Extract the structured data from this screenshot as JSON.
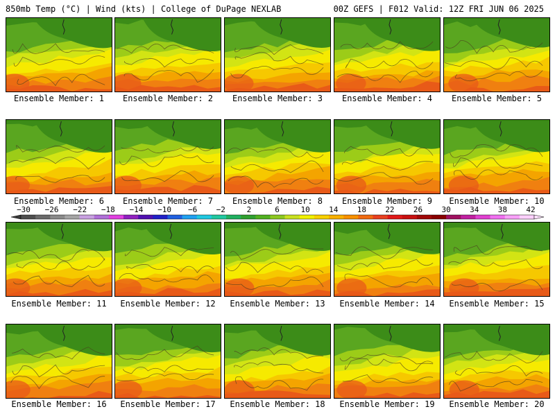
{
  "header": {
    "left": "850mb Temp (°C) | Wind (kts) | College of DuPage NEXLAB",
    "right": "00Z GEFS | F012 Valid: 12Z FRI JUN 06 2025"
  },
  "panels": [
    {
      "label": "Ensemble Member: 1"
    },
    {
      "label": "Ensemble Member: 2"
    },
    {
      "label": "Ensemble Member: 3"
    },
    {
      "label": "Ensemble Member: 4"
    },
    {
      "label": "Ensemble Member: 5"
    },
    {
      "label": "Ensemble Member: 6"
    },
    {
      "label": "Ensemble Member: 7"
    },
    {
      "label": "Ensemble Member: 8"
    },
    {
      "label": "Ensemble Member: 9"
    },
    {
      "label": "Ensemble Member: 10"
    },
    {
      "label": "Ensemble Member: 11"
    },
    {
      "label": "Ensemble Member: 12"
    },
    {
      "label": "Ensemble Member: 13"
    },
    {
      "label": "Ensemble Member: 14"
    },
    {
      "label": "Ensemble Member: 15"
    },
    {
      "label": "Ensemble Member: 16"
    },
    {
      "label": "Ensemble Member: 17"
    },
    {
      "label": "Ensemble Member: 18"
    },
    {
      "label": "Ensemble Member: 19"
    },
    {
      "label": "Ensemble Member: 20"
    }
  ],
  "colorbar": {
    "tick_labels": [
      "-30",
      "-26",
      "-22",
      "-18",
      "-14",
      "-10",
      "-6",
      "-2",
      "2",
      "6",
      "10",
      "14",
      "18",
      "22",
      "26",
      "30",
      "34",
      "38",
      "42"
    ],
    "colors": [
      "#4e4e4e",
      "#6a6a6a",
      "#8a8a8a",
      "#a5a5a5",
      "#c8a0e0",
      "#b070d8",
      "#e040e0",
      "#9020c0",
      "#5010b0",
      "#2020c8",
      "#2060e0",
      "#20a0f0",
      "#20c8e0",
      "#20c8a0",
      "#20b060",
      "#30a030",
      "#50b020",
      "#8cc820",
      "#c8e020",
      "#f0f000",
      "#f8d000",
      "#f8b000",
      "#f89000",
      "#f06a10",
      "#e84020",
      "#e01818",
      "#c81010",
      "#a00808",
      "#880000",
      "#a01060",
      "#c020a0",
      "#e040d0",
      "#f070f0",
      "#f8a0f8",
      "#fcd0fc"
    ]
  },
  "map_colors": {
    "deep_green": "#3c8c18",
    "green": "#5aa620",
    "yellow_green": "#9ccc18",
    "light_lime": "#d2e414",
    "yellow": "#f6ea00",
    "amber": "#f6c800",
    "orange": "#f4a400",
    "dark_orange": "#f08010",
    "red_orange": "#e85a18"
  }
}
